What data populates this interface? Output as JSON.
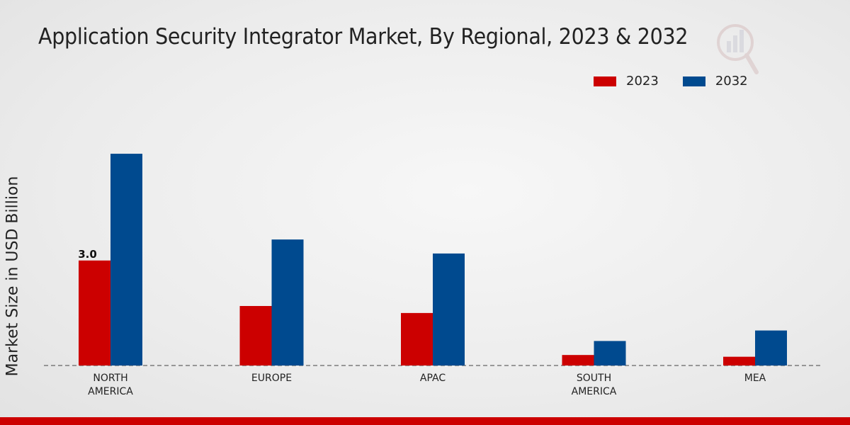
{
  "chart_data": {
    "type": "bar",
    "title": "Application Security Integrator Market, By Regional, 2023 & 2032",
    "ylabel": "Market Size in USD Billion",
    "xlabel": "",
    "categories": [
      [
        "NORTH",
        "AMERICA"
      ],
      [
        "EUROPE"
      ],
      [
        "APAC"
      ],
      [
        "SOUTH",
        "AMERICA"
      ],
      [
        "MEA"
      ]
    ],
    "series": [
      {
        "name": "2023",
        "color": "#cc0000",
        "values": [
          3.0,
          1.7,
          1.5,
          0.3,
          0.25
        ]
      },
      {
        "name": "2032",
        "color": "#004a8f",
        "values": [
          6.05,
          3.6,
          3.2,
          0.7,
          1.0
        ]
      }
    ],
    "data_labels": [
      {
        "series": 0,
        "index": 0,
        "text": "3.0"
      }
    ],
    "ylim": [
      0,
      8.5
    ],
    "grid": false,
    "legend_position": "top-right"
  }
}
